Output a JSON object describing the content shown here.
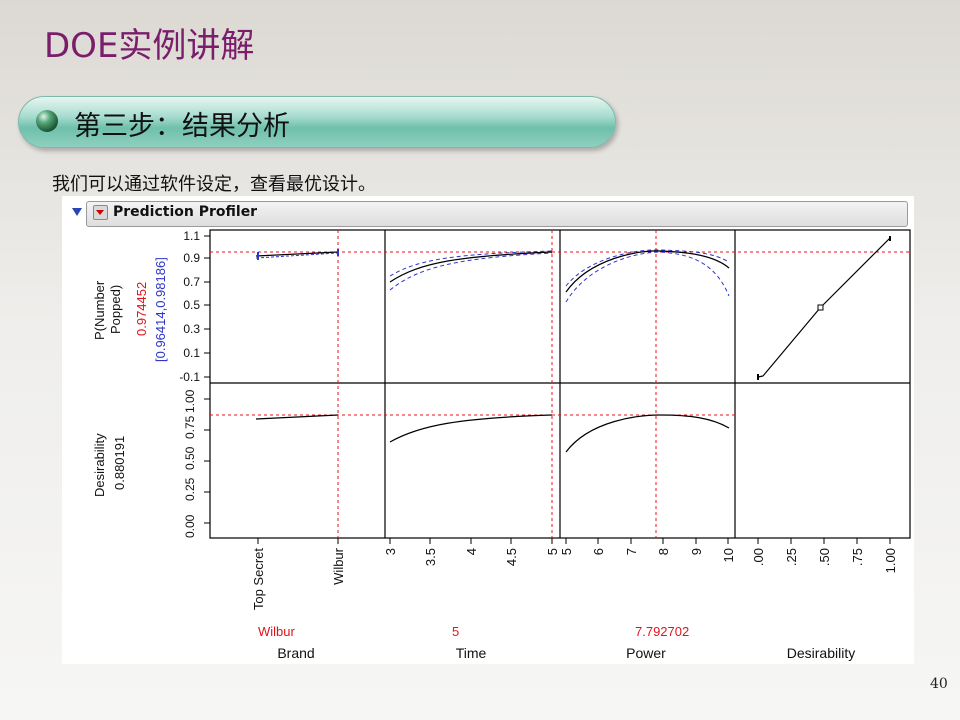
{
  "slide": {
    "title": "DOE实例讲解",
    "step_heading": "第三步：结果分析",
    "description": "我们可以通过软件设定，查看最优设计。",
    "page_number": "40"
  },
  "profiler": {
    "header_title": "Prediction Profiler",
    "response": {
      "label_line1": "P(Number",
      "label_line2": "Popped)",
      "value": "0.974452",
      "ci": "[0.96414,0.98186]",
      "y_ticks": [
        "-0.1",
        "0.1",
        "0.3",
        "0.5",
        "0.7",
        "0.9",
        "1.1"
      ]
    },
    "desirability": {
      "label": "Desirability",
      "value": "0.880191",
      "y_ticks": [
        "0.00",
        "0.25",
        "0.50",
        "0.75",
        "1.00"
      ]
    },
    "factors": [
      {
        "name": "Brand",
        "current": "Wilbur",
        "ticks": [
          "Top Secret",
          "Wilbur"
        ]
      },
      {
        "name": "Time",
        "current": "5",
        "ticks": [
          "3",
          "3.5",
          "4",
          "4.5",
          "5"
        ]
      },
      {
        "name": "Power",
        "current": "7.792702",
        "ticks": [
          "5",
          "6",
          "7",
          "8",
          "9",
          "10"
        ]
      },
      {
        "name": "Desirability",
        "current": "",
        "ticks": [
          ".00",
          ".25",
          ".50",
          ".75",
          "1.00"
        ]
      }
    ],
    "colors": {
      "red": "#e0141e",
      "blue": "#2e35c8",
      "black": "#000000"
    }
  }
}
